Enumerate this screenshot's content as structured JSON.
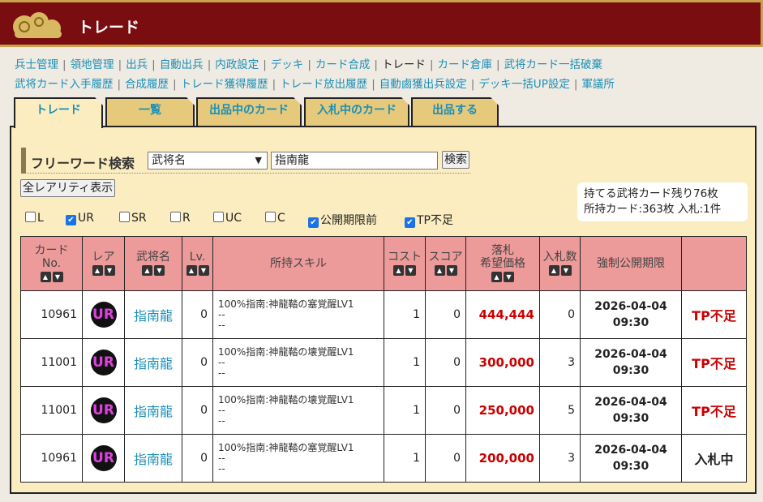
{
  "header": {
    "title": "トレード"
  },
  "nav": {
    "row1": [
      "兵士管理",
      "領地管理",
      "出兵",
      "自動出兵",
      "内政設定",
      "デッキ",
      "カード合成",
      "トレード",
      "カード倉庫",
      "武将カード一括破棄"
    ],
    "row2": [
      "武将カード入手履歴",
      "合成履歴",
      "トレード獲得履歴",
      "トレード放出履歴",
      "自動鹵獲出兵設定",
      "デッキ一括UP設定",
      "軍議所"
    ],
    "current": "トレード"
  },
  "tabs": [
    "トレード",
    "一覧",
    "出品中のカード",
    "入札中のカード",
    "出品する"
  ],
  "search": {
    "heading": "フリーワード検索",
    "field": "武将名",
    "value": "指南龍",
    "button": "検索",
    "all_rarity": "全レアリティ表示"
  },
  "filters": [
    {
      "label": "L",
      "checked": false
    },
    {
      "label": "UR",
      "checked": true
    },
    {
      "label": "SR",
      "checked": false
    },
    {
      "label": "R",
      "checked": false
    },
    {
      "label": "UC",
      "checked": false
    },
    {
      "label": "C",
      "checked": false
    },
    {
      "label": "公開期限前",
      "checked": true
    },
    {
      "label": "TP不足",
      "checked": true
    }
  ],
  "info": {
    "line1": "持てる武将カード残り76枚",
    "line2": "所持カード:363枚 入札:1件"
  },
  "table": {
    "headers": {
      "no1": "カード",
      "no2": "No.",
      "rare": "レア",
      "name": "武将名",
      "lv": "Lv.",
      "skill": "所持スキル",
      "cost": "コスト",
      "score": "スコア",
      "price1": "落札",
      "price2": "希望価格",
      "bids": "入札数",
      "deadline": "強制公開期限"
    },
    "rows": [
      {
        "no": "10961",
        "rare": "UR",
        "name": "指南龍",
        "lv": "0",
        "skill": [
          "100%指南:神龍鞜の塞覚醒LV1",
          "--",
          "--"
        ],
        "cost": "1",
        "score": "0",
        "price": "444,444",
        "bids": "0",
        "date": "2026-04-04",
        "time": "09:30",
        "status": "TP不足"
      },
      {
        "no": "11001",
        "rare": "UR",
        "name": "指南龍",
        "lv": "0",
        "skill": [
          "100%指南:神龍鞜の壊覚醒LV1",
          "--",
          "--"
        ],
        "cost": "1",
        "score": "0",
        "price": "300,000",
        "bids": "3",
        "date": "2026-04-04",
        "time": "09:30",
        "status": "TP不足"
      },
      {
        "no": "11001",
        "rare": "UR",
        "name": "指南龍",
        "lv": "0",
        "skill": [
          "100%指南:神龍鞜の壊覚醒LV1",
          "--",
          "--"
        ],
        "cost": "1",
        "score": "0",
        "price": "250,000",
        "bids": "5",
        "date": "2026-04-04",
        "time": "09:30",
        "status": "TP不足"
      },
      {
        "no": "10961",
        "rare": "UR",
        "name": "指南龍",
        "lv": "0",
        "skill": [
          "100%指南:神龍鞜の塞覚醒LV1",
          "--",
          "--"
        ],
        "cost": "1",
        "score": "0",
        "price": "200,000",
        "bids": "3",
        "date": "2026-04-04",
        "time": "09:30",
        "status": "入札中"
      }
    ]
  },
  "colors": {
    "header_bg": "#7a0d10",
    "link": "#1a8fb8",
    "price": "#cc0000",
    "table_header": "#ec9a9a",
    "panel": "#fbedc0",
    "tab": "#e6c97a"
  }
}
